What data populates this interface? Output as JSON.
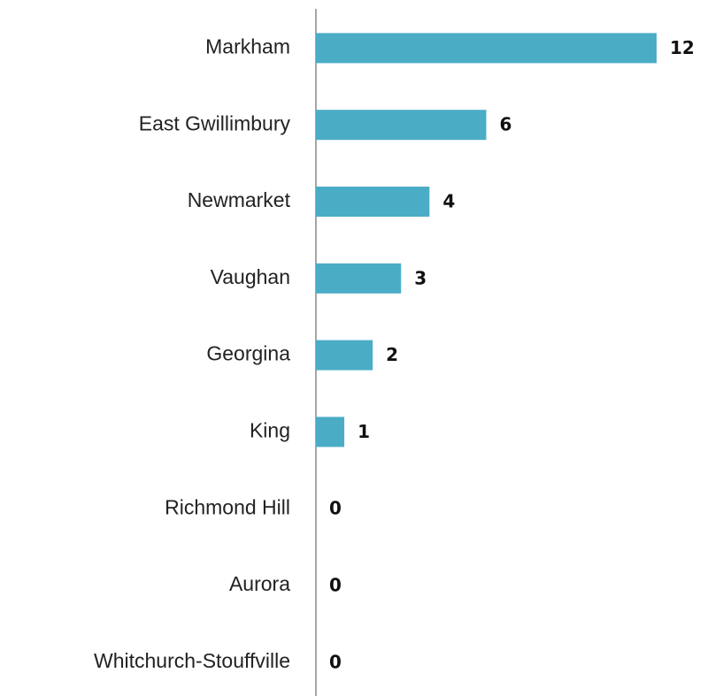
{
  "chart_data": {
    "type": "bar",
    "orientation": "horizontal",
    "categories": [
      "Markham",
      "East Gwillimbury",
      "Newmarket",
      "Vaughan",
      "Georgina",
      "King",
      "Richmond Hill",
      "Aurora",
      "Whitchurch-Stouffville"
    ],
    "values": [
      12,
      6,
      4,
      3,
      2,
      1,
      0,
      0,
      0
    ],
    "color": "#4bacc6"
  }
}
